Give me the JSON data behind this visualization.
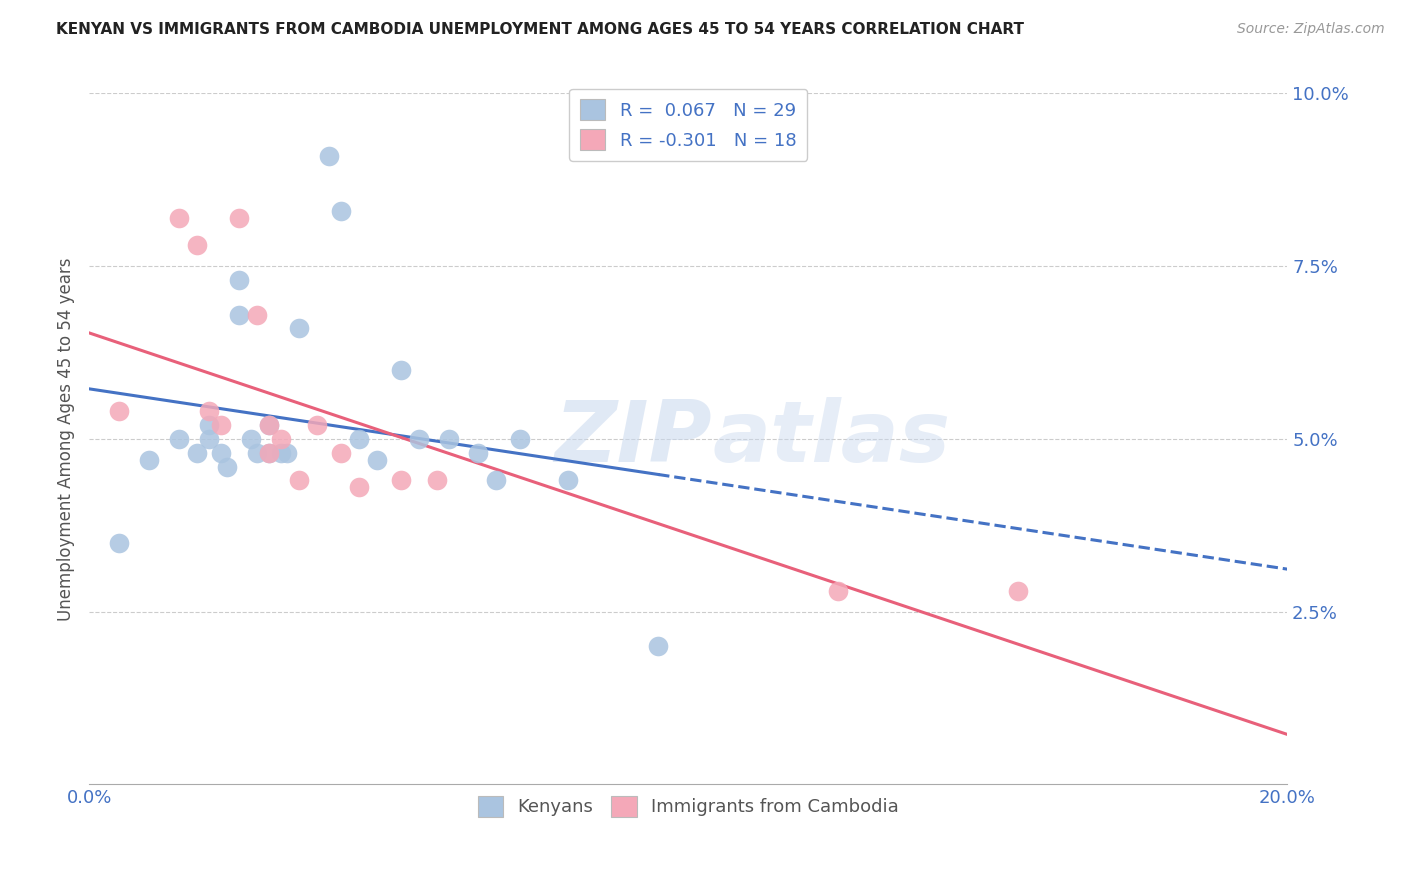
{
  "title": "KENYAN VS IMMIGRANTS FROM CAMBODIA UNEMPLOYMENT AMONG AGES 45 TO 54 YEARS CORRELATION CHART",
  "source": "Source: ZipAtlas.com",
  "ylabel": "Unemployment Among Ages 45 to 54 years",
  "xlim": [
    0.0,
    0.2
  ],
  "ylim": [
    0.0,
    0.1
  ],
  "xticks": [
    0.0,
    0.05,
    0.1,
    0.15,
    0.2
  ],
  "xticklabels": [
    "0.0%",
    "",
    "",
    "",
    "20.0%"
  ],
  "yticks_right": [
    0.0,
    0.025,
    0.05,
    0.075,
    0.1
  ],
  "yticklabels_right": [
    "",
    "2.5%",
    "5.0%",
    "7.5%",
    "10.0%"
  ],
  "kenyan_R": 0.067,
  "kenyan_N": 29,
  "cambodia_R": -0.301,
  "cambodia_N": 18,
  "kenyan_color": "#aac4e0",
  "cambodia_color": "#f4a8b8",
  "kenyan_line_color": "#4472c4",
  "cambodia_line_color": "#e8607a",
  "legend_text_color": "#4472c4",
  "watermark": "ZIPatlas",
  "kenyan_x": [
    0.005,
    0.01,
    0.015,
    0.018,
    0.02,
    0.02,
    0.022,
    0.023,
    0.025,
    0.025,
    0.027,
    0.028,
    0.03,
    0.03,
    0.032,
    0.033,
    0.035,
    0.04,
    0.042,
    0.045,
    0.048,
    0.052,
    0.055,
    0.06,
    0.065,
    0.068,
    0.072,
    0.08,
    0.095
  ],
  "kenyan_y": [
    0.035,
    0.047,
    0.05,
    0.048,
    0.052,
    0.05,
    0.048,
    0.046,
    0.073,
    0.068,
    0.05,
    0.048,
    0.052,
    0.048,
    0.048,
    0.048,
    0.066,
    0.091,
    0.083,
    0.05,
    0.047,
    0.06,
    0.05,
    0.05,
    0.048,
    0.044,
    0.05,
    0.044,
    0.02
  ],
  "cambodia_x": [
    0.005,
    0.015,
    0.018,
    0.02,
    0.022,
    0.025,
    0.028,
    0.03,
    0.03,
    0.032,
    0.035,
    0.038,
    0.042,
    0.045,
    0.052,
    0.058,
    0.125,
    0.155
  ],
  "cambodia_y": [
    0.054,
    0.082,
    0.078,
    0.054,
    0.052,
    0.082,
    0.068,
    0.052,
    0.048,
    0.05,
    0.044,
    0.052,
    0.048,
    0.043,
    0.044,
    0.044,
    0.028,
    0.028
  ],
  "background_color": "#ffffff",
  "grid_color": "#cccccc",
  "kenyan_line_solid_end": 0.095,
  "kenyan_line_dash_end": 0.2
}
